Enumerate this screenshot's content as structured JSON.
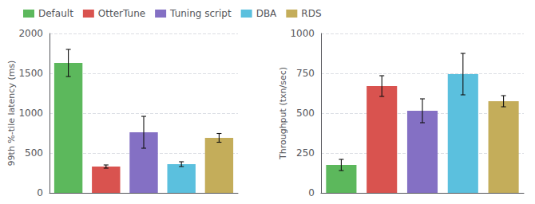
{
  "chart_data": [
    {
      "type": "bar",
      "categories": [
        "Default",
        "OtterTune",
        "Tuning script",
        "DBA",
        "RDS"
      ],
      "colors": [
        "#5cb85c",
        "#d9534f",
        "#8470c4",
        "#5bc0de",
        "#c4ad5a"
      ],
      "ylabel": "99th %-tile latency (ms)",
      "values": [
        1630,
        330,
        760,
        360,
        690
      ],
      "errors": [
        170,
        20,
        200,
        30,
        55
      ],
      "ylim": [
        0,
        2000
      ],
      "yticks": [
        0,
        500,
        1000,
        1500,
        2000
      ],
      "grid": true,
      "tick_labels": "y",
      "legend": "upper left"
    },
    {
      "type": "bar",
      "categories": [
        "Default",
        "OtterTune",
        "Tuning script",
        "DBA",
        "RDS"
      ],
      "colors": [
        "#5cb85c",
        "#d9534f",
        "#8470c4",
        "#5bc0de",
        "#c4ad5a"
      ],
      "ylabel": "Throughput (txn/sec)",
      "values": [
        175,
        670,
        515,
        745,
        575
      ],
      "errors": [
        35,
        65,
        75,
        130,
        35
      ],
      "ylim": [
        0,
        1000
      ],
      "yticks": [
        0,
        250,
        500,
        750,
        1000
      ],
      "grid": true,
      "tick_labels": "y"
    }
  ]
}
